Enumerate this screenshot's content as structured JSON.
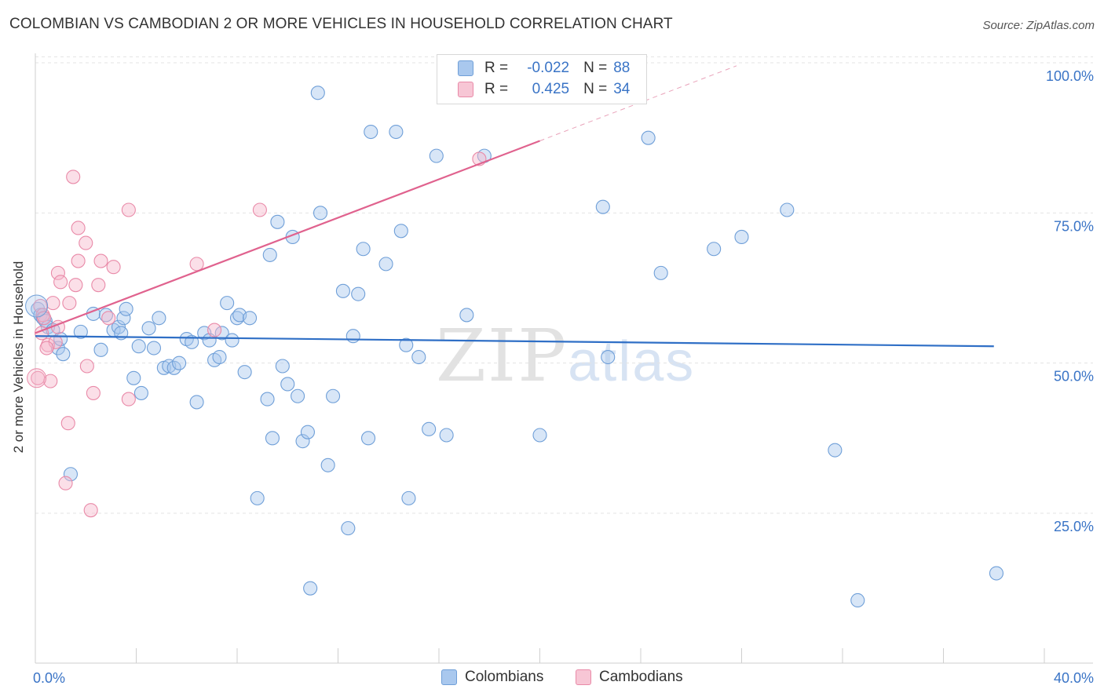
{
  "title": "COLOMBIAN VS CAMBODIAN 2 OR MORE VEHICLES IN HOUSEHOLD CORRELATION CHART",
  "source": "Source: ZipAtlas.com",
  "watermark": {
    "zip": "ZIP",
    "atlas": "atlas"
  },
  "legend": {
    "r_label": "R =",
    "n_label": "N =",
    "colombians": {
      "r": "-0.022",
      "n": "88"
    },
    "cambodians": {
      "r": "0.425",
      "n": "34"
    }
  },
  "bottom_legend": {
    "colombians": "Colombians",
    "cambodians": "Cambodians"
  },
  "colors": {
    "blue_fill": "#a9c8ee",
    "blue_stroke": "#6f9fd8",
    "blue_line": "#2f6fc6",
    "pink_fill": "#f7b8cb",
    "pink_stroke": "#e98aa8",
    "pink_line": "#e0628e",
    "axis_text": "#3a74c6"
  },
  "chart_data": {
    "type": "scatter",
    "title": "COLOMBIAN VS CAMBODIAN 2 OR MORE VEHICLES IN HOUSEHOLD CORRELATION CHART",
    "xlabel": "",
    "ylabel": "2 or more Vehicles in Household",
    "xlim": [
      0,
      40
    ],
    "ylim": [
      0,
      105
    ],
    "x_tick_labels": [
      "0.0%",
      "40.0%"
    ],
    "y_ticks": [
      25,
      50,
      75,
      100
    ],
    "y_tick_labels": [
      "25.0%",
      "50.0%",
      "75.0%",
      "100.0%"
    ],
    "series": [
      {
        "name": "Colombians",
        "trend": {
          "x": [
            0,
            38
          ],
          "y": [
            54.5,
            52.8
          ]
        },
        "points": [
          [
            0.1,
            59
          ],
          [
            0.2,
            58
          ],
          [
            0.3,
            57.5
          ],
          [
            0.4,
            57
          ],
          [
            0.5,
            56
          ],
          [
            0.7,
            55.5
          ],
          [
            0.9,
            52.5
          ],
          [
            1.0,
            54
          ],
          [
            1.1,
            51.5
          ],
          [
            1.4,
            31.5
          ],
          [
            1.8,
            55.2
          ],
          [
            2.3,
            58.2
          ],
          [
            2.6,
            52.2
          ],
          [
            2.8,
            58
          ],
          [
            3.1,
            55.5
          ],
          [
            3.3,
            56
          ],
          [
            3.4,
            55
          ],
          [
            3.5,
            57.5
          ],
          [
            3.6,
            59
          ],
          [
            3.9,
            47.5
          ],
          [
            4.1,
            52.8
          ],
          [
            4.2,
            45
          ],
          [
            4.5,
            55.8
          ],
          [
            4.7,
            52.5
          ],
          [
            4.9,
            57.5
          ],
          [
            5.1,
            49.2
          ],
          [
            5.3,
            49.5
          ],
          [
            5.5,
            49.2
          ],
          [
            5.7,
            50
          ],
          [
            6.0,
            54
          ],
          [
            6.2,
            53.5
          ],
          [
            6.4,
            43.5
          ],
          [
            6.7,
            55
          ],
          [
            6.9,
            53.8
          ],
          [
            7.1,
            50.5
          ],
          [
            7.3,
            51
          ],
          [
            7.4,
            55
          ],
          [
            7.6,
            60
          ],
          [
            7.8,
            53.8
          ],
          [
            8.0,
            57.5
          ],
          [
            8.1,
            58
          ],
          [
            8.5,
            57.5
          ],
          [
            8.3,
            48.5
          ],
          [
            8.8,
            27.5
          ],
          [
            9.2,
            44
          ],
          [
            9.3,
            68
          ],
          [
            9.4,
            37.5
          ],
          [
            9.6,
            73.5
          ],
          [
            9.8,
            49.5
          ],
          [
            10.0,
            46.5
          ],
          [
            10.2,
            71
          ],
          [
            10.4,
            44.5
          ],
          [
            10.6,
            37
          ],
          [
            10.8,
            38.5
          ],
          [
            10.9,
            12.5
          ],
          [
            11.2,
            95
          ],
          [
            11.3,
            75
          ],
          [
            11.6,
            33
          ],
          [
            11.8,
            44.5
          ],
          [
            12.2,
            62
          ],
          [
            12.4,
            22.5
          ],
          [
            12.6,
            54.5
          ],
          [
            12.8,
            61.5
          ],
          [
            13.0,
            69
          ],
          [
            13.2,
            37.5
          ],
          [
            13.3,
            88.5
          ],
          [
            13.9,
            66.5
          ],
          [
            14.3,
            88.5
          ],
          [
            14.5,
            72
          ],
          [
            14.7,
            53
          ],
          [
            14.8,
            27.5
          ],
          [
            15.2,
            51
          ],
          [
            15.6,
            39
          ],
          [
            15.9,
            84.5
          ],
          [
            16.3,
            38
          ],
          [
            17.1,
            58
          ],
          [
            17.8,
            84.5
          ],
          [
            20.0,
            38
          ],
          [
            22.5,
            76
          ],
          [
            22.7,
            51
          ],
          [
            24.3,
            87.5
          ],
          [
            24.8,
            65
          ],
          [
            26.9,
            69
          ],
          [
            28.0,
            71
          ],
          [
            29.8,
            75.5
          ],
          [
            31.7,
            35.5
          ],
          [
            32.6,
            10.5
          ],
          [
            38.1,
            15
          ]
        ]
      },
      {
        "name": "Cambodians",
        "trend": {
          "x": [
            0,
            20
          ],
          "y": [
            55,
            87
          ]
        },
        "trend_dashed": {
          "x": [
            20,
            27.8
          ],
          "y": [
            87,
            99.5
          ]
        },
        "points": [
          [
            0.1,
            47.5
          ],
          [
            0.2,
            59.5
          ],
          [
            0.3,
            58
          ],
          [
            0.35,
            57.5
          ],
          [
            0.5,
            53
          ],
          [
            0.6,
            47
          ],
          [
            0.7,
            60
          ],
          [
            0.8,
            53.5
          ],
          [
            0.9,
            56
          ],
          [
            0.9,
            65
          ],
          [
            1.0,
            63.5
          ],
          [
            1.2,
            30
          ],
          [
            1.3,
            40
          ],
          [
            1.35,
            60
          ],
          [
            1.5,
            81
          ],
          [
            1.6,
            63
          ],
          [
            1.7,
            67
          ],
          [
            1.7,
            72.5
          ],
          [
            2.0,
            70
          ],
          [
            2.05,
            49.5
          ],
          [
            2.2,
            25.5
          ],
          [
            2.3,
            45
          ],
          [
            2.5,
            63
          ],
          [
            2.6,
            67
          ],
          [
            2.9,
            57.5
          ],
          [
            3.1,
            66
          ],
          [
            3.7,
            44
          ],
          [
            3.7,
            75.5
          ],
          [
            6.4,
            66.5
          ],
          [
            7.1,
            55.5
          ],
          [
            8.9,
            75.5
          ],
          [
            17.6,
            84
          ],
          [
            0.45,
            52.5
          ],
          [
            0.25,
            55
          ]
        ]
      }
    ]
  }
}
